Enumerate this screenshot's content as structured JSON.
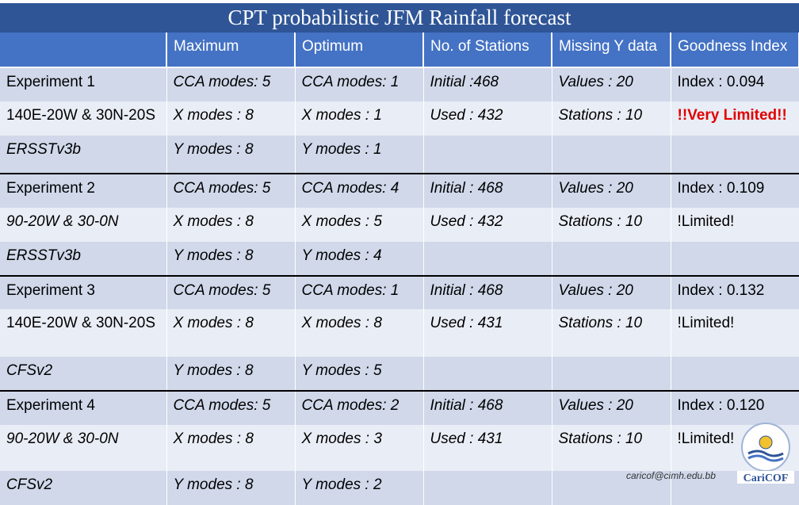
{
  "title": "CPT probabilistic JFM Rainfall forecast",
  "headers": [
    "",
    "Maximum",
    "Optimum",
    "No. of Stations",
    "Missing Y data",
    "Goodness Index"
  ],
  "experiments": [
    {
      "rows": [
        [
          "Experiment 1",
          "CCA modes: 5",
          "CCA modes: 1",
          "Initial :468",
          "Values : 20",
          "Index : 0.094"
        ],
        [
          "140E-20W & 30N-20S",
          "X modes : 8",
          "X modes : 1",
          "Used : 432",
          "Stations : 10",
          "!!Very Limited!!"
        ],
        [
          "ERSSTv3b",
          "Y modes : 8",
          "Y modes : 1",
          "",
          "",
          ""
        ]
      ]
    },
    {
      "rows": [
        [
          "Experiment 2",
          "CCA modes: 5",
          "CCA modes: 4",
          "Initial : 468",
          "Values : 20",
          "Index : 0.109"
        ],
        [
          "90-20W & 30-0N",
          "X modes : 8",
          "X modes : 5",
          "Used : 432",
          "Stations : 10",
          "!Limited!"
        ],
        [
          "ERSSTv3b",
          "Y modes : 8",
          "Y modes : 4",
          "",
          "",
          ""
        ]
      ]
    },
    {
      "rows": [
        [
          "Experiment 3",
          "CCA modes: 5",
          "CCA modes: 1",
          "Initial : 468",
          "Values : 20",
          "Index : 0.132"
        ],
        [
          "140E-20W & 30N-20S",
          "X modes : 8",
          "X modes : 8",
          "Used : 431",
          "Stations : 10",
          "!Limited!"
        ],
        [
          "CFSv2",
          "Y modes : 8",
          "Y modes : 5",
          "",
          "",
          ""
        ]
      ]
    },
    {
      "rows": [
        [
          "Experiment 4",
          "CCA modes: 5",
          "CCA modes: 2",
          "Initial : 468",
          "Values : 20",
          "Index : 0.120"
        ],
        [
          "90-20W & 30-0N",
          "X modes : 8",
          "X modes : 3",
          "Used : 431",
          "Stations : 10",
          "!Limited!"
        ],
        [
          "CFSv2",
          "Y modes : 8",
          "Y modes : 2",
          "",
          "",
          ""
        ]
      ]
    }
  ],
  "footer_email": "caricof@cimh.edu.bb",
  "logo_text": "CariCOF",
  "colors": {
    "header": "#4472c4",
    "band_dark": "#d0d8ea",
    "band_light": "#e9edf5",
    "warning": "#e00000"
  }
}
